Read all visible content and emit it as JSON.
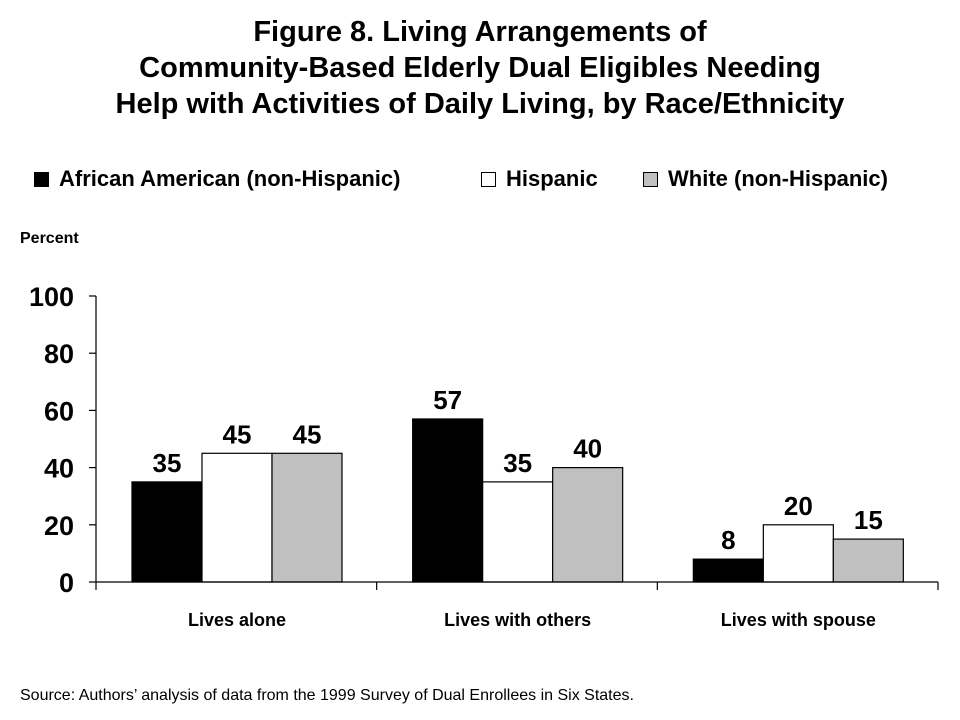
{
  "title_lines": [
    "Figure 8. Living Arrangements of",
    "Community-Based Elderly Dual Eligibles Needing",
    "Help with Activities of Daily Living, by Race/Ethnicity"
  ],
  "source": "Source: Authors’ analysis of data from the 1999 Survey of Dual Enrollees in Six States.",
  "chart_data": {
    "type": "bar",
    "title": "Figure 8. Living Arrangements of Community-Based Elderly Dual Eligibles Needing Help with Activities of Daily Living, by Race/Ethnicity",
    "ylabel": "Percent",
    "xlabel": "",
    "ylim": [
      0,
      100
    ],
    "yticks": [
      0,
      20,
      40,
      60,
      80,
      100
    ],
    "grid": false,
    "legend_position": "top",
    "categories": [
      "Lives alone",
      "Lives with others",
      "Lives with spouse"
    ],
    "series": [
      {
        "name": "African American (non-Hispanic)",
        "color": "#000000",
        "values": [
          35,
          57,
          8
        ]
      },
      {
        "name": "Hispanic",
        "color": "#ffffff",
        "values": [
          45,
          35,
          20
        ]
      },
      {
        "name": "White (non-Hispanic)",
        "color": "#c0c0c0",
        "values": [
          45,
          40,
          15
        ]
      }
    ]
  }
}
